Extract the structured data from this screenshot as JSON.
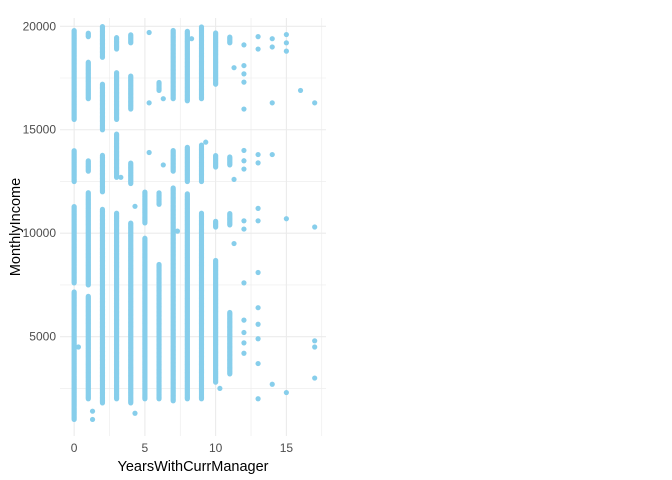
{
  "chart_data": {
    "type": "scatter",
    "title": "",
    "xlabel": "YearsWithCurrManager",
    "ylabel": "MonthlyIncome",
    "xlim": [
      -1,
      17.8
    ],
    "ylim": [
      200,
      20400
    ],
    "x_ticks": [
      0,
      5,
      10,
      15
    ],
    "y_ticks": [
      5000,
      10000,
      15000,
      20000
    ],
    "grid": true,
    "legend": "none",
    "point_color": "#87CEEB",
    "gridline_color": "#ebebeb",
    "columns": [
      {
        "x": 0,
        "segments": [
          [
            1000,
            7200
          ],
          [
            7600,
            11300
          ],
          [
            12500,
            14000
          ],
          [
            15500,
            19800
          ]
        ]
      },
      {
        "x": 1,
        "segments": [
          [
            2000,
            7000
          ],
          [
            7500,
            12000
          ],
          [
            13000,
            13500
          ],
          [
            16500,
            18300
          ],
          [
            19500,
            19700
          ]
        ]
      },
      {
        "x": 2,
        "segments": [
          [
            1800,
            11200
          ],
          [
            12000,
            13800
          ],
          [
            15000,
            17200
          ],
          [
            18500,
            20000
          ]
        ]
      },
      {
        "x": 3,
        "segments": [
          [
            2000,
            11000
          ],
          [
            12700,
            14800
          ],
          [
            15500,
            17800
          ],
          [
            18900,
            19500
          ]
        ]
      },
      {
        "x": 4,
        "segments": [
          [
            1800,
            10500
          ],
          [
            12400,
            13400
          ],
          [
            16000,
            17600
          ],
          [
            19200,
            19600
          ]
        ]
      },
      {
        "x": 5,
        "segments": [
          [
            2000,
            9800
          ],
          [
            10500,
            12000
          ]
        ]
      },
      {
        "x": 6,
        "segments": [
          [
            2000,
            8500
          ],
          [
            11400,
            12000
          ],
          [
            16900,
            17300
          ]
        ]
      },
      {
        "x": 7,
        "segments": [
          [
            1900,
            12200
          ],
          [
            13000,
            14000
          ],
          [
            16500,
            19800
          ]
        ]
      },
      {
        "x": 8,
        "segments": [
          [
            2000,
            11900
          ],
          [
            12500,
            14200
          ],
          [
            16400,
            19800
          ]
        ]
      },
      {
        "x": 9,
        "segments": [
          [
            2000,
            11000
          ],
          [
            12500,
            14300
          ],
          [
            16500,
            20000
          ]
        ]
      },
      {
        "x": 10,
        "segments": [
          [
            2800,
            8700
          ],
          [
            10300,
            10600
          ],
          [
            13200,
            13800
          ],
          [
            17200,
            19700
          ]
        ]
      },
      {
        "x": 11,
        "segments": [
          [
            3200,
            6200
          ],
          [
            10400,
            11000
          ],
          [
            13300,
            13700
          ],
          [
            19200,
            19500
          ]
        ]
      }
    ],
    "points": [
      {
        "x": 0.3,
        "y": 4500
      },
      {
        "x": 1.3,
        "y": 1400
      },
      {
        "x": 1.3,
        "y": 1000
      },
      {
        "x": 3.3,
        "y": 12700
      },
      {
        "x": 4.3,
        "y": 1300
      },
      {
        "x": 4.3,
        "y": 11300
      },
      {
        "x": 5.3,
        "y": 13900
      },
      {
        "x": 5.3,
        "y": 16300
      },
      {
        "x": 5.3,
        "y": 19700
      },
      {
        "x": 6.3,
        "y": 13300
      },
      {
        "x": 6.3,
        "y": 16500
      },
      {
        "x": 7.3,
        "y": 10100
      },
      {
        "x": 8.3,
        "y": 19400
      },
      {
        "x": 9.3,
        "y": 14400
      },
      {
        "x": 10.3,
        "y": 2500
      },
      {
        "x": 11.3,
        "y": 9500
      },
      {
        "x": 11.3,
        "y": 18000
      },
      {
        "x": 11.3,
        "y": 12600
      },
      {
        "x": 12,
        "y": 4200
      },
      {
        "x": 12,
        "y": 4700
      },
      {
        "x": 12,
        "y": 5200
      },
      {
        "x": 12,
        "y": 5800
      },
      {
        "x": 12,
        "y": 7600
      },
      {
        "x": 12,
        "y": 10200
      },
      {
        "x": 12,
        "y": 10600
      },
      {
        "x": 12,
        "y": 13100
      },
      {
        "x": 12,
        "y": 13500
      },
      {
        "x": 12,
        "y": 14000
      },
      {
        "x": 12,
        "y": 16000
      },
      {
        "x": 12,
        "y": 17300
      },
      {
        "x": 12,
        "y": 17700
      },
      {
        "x": 12,
        "y": 18100
      },
      {
        "x": 12,
        "y": 19100
      },
      {
        "x": 13,
        "y": 2000
      },
      {
        "x": 13,
        "y": 3700
      },
      {
        "x": 13,
        "y": 4900
      },
      {
        "x": 13,
        "y": 5600
      },
      {
        "x": 13,
        "y": 6400
      },
      {
        "x": 13,
        "y": 8100
      },
      {
        "x": 13,
        "y": 10600
      },
      {
        "x": 13,
        "y": 11200
      },
      {
        "x": 13,
        "y": 13400
      },
      {
        "x": 13,
        "y": 13800
      },
      {
        "x": 13,
        "y": 18900
      },
      {
        "x": 13,
        "y": 19500
      },
      {
        "x": 14,
        "y": 2700
      },
      {
        "x": 14,
        "y": 13800
      },
      {
        "x": 14,
        "y": 16300
      },
      {
        "x": 14,
        "y": 19000
      },
      {
        "x": 14,
        "y": 19400
      },
      {
        "x": 15,
        "y": 2300
      },
      {
        "x": 15,
        "y": 10700
      },
      {
        "x": 15,
        "y": 18800
      },
      {
        "x": 15,
        "y": 19200
      },
      {
        "x": 15,
        "y": 19600
      },
      {
        "x": 16,
        "y": 16900
      },
      {
        "x": 17,
        "y": 3000
      },
      {
        "x": 17,
        "y": 4500
      },
      {
        "x": 17,
        "y": 4800
      },
      {
        "x": 17,
        "y": 10300
      },
      {
        "x": 17,
        "y": 16300
      }
    ]
  }
}
